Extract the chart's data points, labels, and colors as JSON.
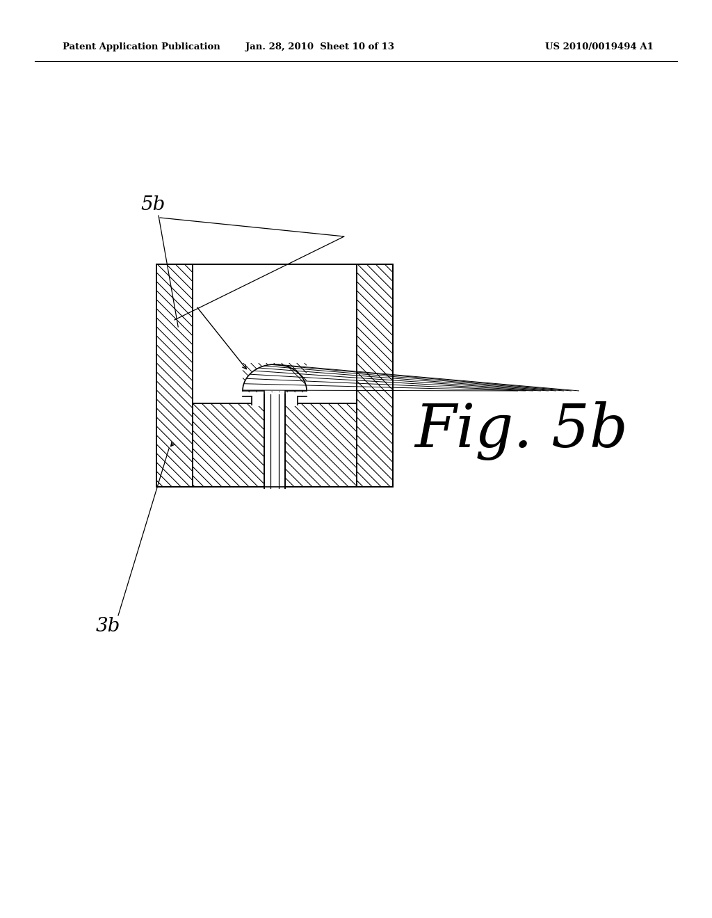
{
  "bg_color": "#ffffff",
  "line_color": "#000000",
  "header_left": "Patent Application Publication",
  "header_mid": "Jan. 28, 2010  Sheet 10 of 13",
  "header_right": "US 2010/0019494 A1",
  "fig_label": "Fig. 5b",
  "label_5b": "5b",
  "label_3b": "3b"
}
